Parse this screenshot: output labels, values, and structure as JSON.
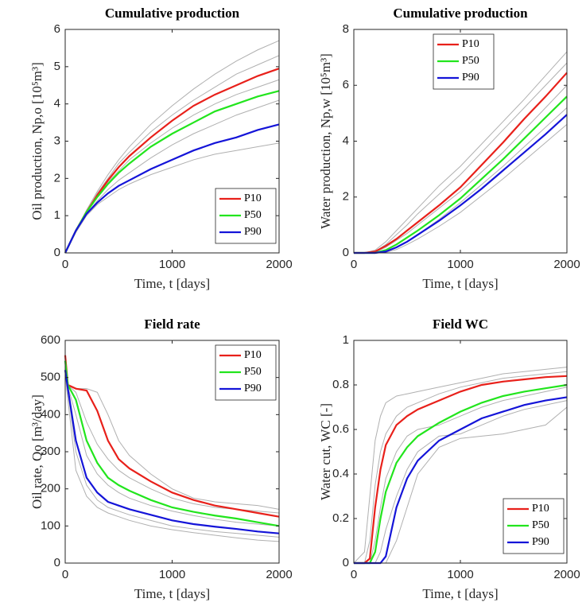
{
  "chart_data": [
    {
      "type": "line",
      "title": "Cumulative production",
      "xlabel": "Time, t [days]",
      "ylabel": "Oil production, Np,o [10⁵m³]",
      "x": [
        0,
        100,
        200,
        300,
        400,
        500,
        600,
        800,
        1000,
        1200,
        1400,
        1600,
        1800,
        2000
      ],
      "xlim": [
        0,
        2000
      ],
      "xticks": [
        0,
        1000,
        2000
      ],
      "ylim": [
        0,
        6
      ],
      "yticks": [
        0,
        1,
        2,
        3,
        4,
        5,
        6
      ],
      "legend": "lower right",
      "series": [
        {
          "color": "#b0b0b0",
          "values": [
            0,
            0.6,
            1.15,
            1.65,
            2.1,
            2.5,
            2.85,
            3.45,
            3.95,
            4.4,
            4.8,
            5.15,
            5.45,
            5.7
          ]
        },
        {
          "color": "#b0b0b0",
          "values": [
            0,
            0.6,
            1.1,
            1.6,
            2.0,
            2.4,
            2.7,
            3.25,
            3.7,
            4.1,
            4.45,
            4.8,
            5.05,
            5.3
          ]
        },
        {
          "color": "#b0b0b0",
          "values": [
            0,
            0.6,
            1.1,
            1.5,
            1.9,
            2.2,
            2.5,
            2.95,
            3.35,
            3.7,
            4.0,
            4.25,
            4.45,
            4.65
          ]
        },
        {
          "color": "#b0b0b0",
          "values": [
            0,
            0.6,
            1.05,
            1.4,
            1.7,
            1.95,
            2.15,
            2.55,
            2.9,
            3.2,
            3.45,
            3.7,
            3.9,
            4.1
          ]
        },
        {
          "color": "#b0b0b0",
          "values": [
            0,
            0.55,
            1.0,
            1.3,
            1.5,
            1.7,
            1.85,
            2.1,
            2.3,
            2.5,
            2.65,
            2.75,
            2.85,
            2.95
          ]
        },
        {
          "name": "P10",
          "color": "#e8201a",
          "values": [
            0,
            0.6,
            1.1,
            1.55,
            1.95,
            2.3,
            2.6,
            3.1,
            3.55,
            3.95,
            4.25,
            4.5,
            4.75,
            4.95
          ]
        },
        {
          "name": "P50",
          "color": "#22e51d",
          "values": [
            0,
            0.6,
            1.1,
            1.5,
            1.85,
            2.15,
            2.4,
            2.85,
            3.2,
            3.5,
            3.8,
            4.0,
            4.2,
            4.35
          ]
        },
        {
          "name": "P90",
          "color": "#1414d8",
          "values": [
            0,
            0.6,
            1.05,
            1.35,
            1.6,
            1.8,
            1.95,
            2.25,
            2.5,
            2.75,
            2.95,
            3.1,
            3.3,
            3.45
          ]
        }
      ]
    },
    {
      "type": "line",
      "title": "Cumulative production",
      "xlabel": "Time, t [days]",
      "ylabel": "Water production, Np,w [10⁵m³]",
      "x": [
        0,
        100,
        200,
        300,
        400,
        500,
        600,
        800,
        1000,
        1200,
        1400,
        1600,
        1800,
        2000
      ],
      "xlim": [
        0,
        2000
      ],
      "xticks": [
        0,
        1000,
        2000
      ],
      "ylim": [
        0,
        8
      ],
      "yticks": [
        0,
        2,
        4,
        6,
        8
      ],
      "legend": "upper center",
      "series": [
        {
          "color": "#b0b0b0",
          "values": [
            0,
            0,
            0.1,
            0.4,
            0.8,
            1.2,
            1.6,
            2.4,
            3.1,
            3.9,
            4.7,
            5.5,
            6.35,
            7.2
          ]
        },
        {
          "color": "#b0b0b0",
          "values": [
            0,
            0,
            0.05,
            0.3,
            0.65,
            1.0,
            1.4,
            2.1,
            2.8,
            3.6,
            4.4,
            5.2,
            6.0,
            6.8
          ]
        },
        {
          "color": "#b0b0b0",
          "values": [
            0,
            0,
            0.02,
            0.2,
            0.45,
            0.7,
            1.0,
            1.6,
            2.2,
            2.9,
            3.6,
            4.4,
            5.2,
            6.0
          ]
        },
        {
          "color": "#b0b0b0",
          "values": [
            0,
            0,
            0,
            0.05,
            0.2,
            0.4,
            0.65,
            1.2,
            1.8,
            2.45,
            3.1,
            3.8,
            4.5,
            5.2
          ]
        },
        {
          "color": "#b0b0b0",
          "values": [
            0,
            0,
            0,
            0.02,
            0.12,
            0.3,
            0.5,
            0.95,
            1.45,
            2.05,
            2.65,
            3.3,
            3.95,
            4.6
          ]
        },
        {
          "name": "P10",
          "color": "#e8201a",
          "values": [
            0,
            0,
            0.05,
            0.25,
            0.5,
            0.8,
            1.1,
            1.7,
            2.35,
            3.15,
            3.95,
            4.8,
            5.6,
            6.45
          ]
        },
        {
          "name": "P50",
          "color": "#22e51d",
          "values": [
            0,
            0,
            0,
            0.1,
            0.3,
            0.55,
            0.8,
            1.35,
            1.95,
            2.65,
            3.35,
            4.1,
            4.85,
            5.6
          ]
        },
        {
          "name": "P90",
          "color": "#1414d8",
          "values": [
            0,
            0,
            0,
            0.05,
            0.2,
            0.4,
            0.65,
            1.15,
            1.7,
            2.3,
            2.95,
            3.6,
            4.25,
            4.95
          ]
        }
      ]
    },
    {
      "type": "line",
      "title": "Field rate",
      "xlabel": "Time, t [days]",
      "ylabel": "Oil rate, Qo [m³/day]",
      "x": [
        0,
        25,
        100,
        200,
        300,
        400,
        500,
        600,
        800,
        1000,
        1200,
        1400,
        1600,
        1800,
        2000
      ],
      "xlim": [
        0,
        2000
      ],
      "xticks": [
        0,
        1000,
        2000
      ],
      "ylim": [
        0,
        600
      ],
      "yticks": [
        0,
        100,
        200,
        300,
        400,
        500,
        600
      ],
      "legend": "upper right",
      "series": [
        {
          "color": "#b0b0b0",
          "values": [
            550,
            480,
            470,
            470,
            460,
            400,
            330,
            290,
            240,
            200,
            175,
            165,
            160,
            155,
            145
          ]
        },
        {
          "color": "#b0b0b0",
          "values": [
            540,
            480,
            460,
            380,
            320,
            280,
            250,
            230,
            200,
            175,
            160,
            150,
            145,
            140,
            135
          ]
        },
        {
          "color": "#b0b0b0",
          "values": [
            530,
            475,
            400,
            290,
            240,
            210,
            190,
            175,
            155,
            140,
            128,
            118,
            110,
            105,
            100
          ]
        },
        {
          "color": "#b0b0b0",
          "values": [
            520,
            460,
            300,
            210,
            170,
            150,
            140,
            130,
            115,
            100,
            92,
            85,
            80,
            75,
            70
          ]
        },
        {
          "color": "#b0b0b0",
          "values": [
            510,
            440,
            250,
            180,
            150,
            135,
            125,
            115,
            100,
            90,
            82,
            75,
            68,
            62,
            58
          ]
        },
        {
          "name": "P10",
          "color": "#e8201a",
          "values": [
            560,
            480,
            470,
            465,
            410,
            330,
            280,
            255,
            220,
            190,
            170,
            155,
            145,
            135,
            125
          ]
        },
        {
          "name": "P50",
          "color": "#22e51d",
          "values": [
            545,
            480,
            440,
            330,
            270,
            230,
            210,
            195,
            170,
            150,
            138,
            128,
            120,
            110,
            100
          ]
        },
        {
          "name": "P90",
          "color": "#1414d8",
          "values": [
            520,
            470,
            330,
            230,
            190,
            165,
            155,
            145,
            130,
            115,
            105,
            98,
            92,
            85,
            80
          ]
        }
      ]
    },
    {
      "type": "line",
      "title": "Field WC",
      "xlabel": "Time, t [days]",
      "ylabel": "Water cut, WC [-]",
      "x": [
        0,
        100,
        150,
        200,
        250,
        300,
        400,
        500,
        600,
        800,
        1000,
        1200,
        1400,
        1600,
        1800,
        2000
      ],
      "xlim": [
        0,
        2000
      ],
      "xticks": [
        0,
        1000,
        2000
      ],
      "ylim": [
        0,
        1
      ],
      "yticks": [
        0,
        0.2,
        0.4,
        0.6,
        0.8,
        1
      ],
      "legend": "lower right",
      "series": [
        {
          "color": "#b0b0b0",
          "values": [
            0,
            0.05,
            0.3,
            0.55,
            0.66,
            0.72,
            0.75,
            0.76,
            0.77,
            0.79,
            0.81,
            0.83,
            0.85,
            0.86,
            0.87,
            0.88
          ]
        },
        {
          "color": "#b0b0b0",
          "values": [
            0,
            0,
            0.1,
            0.35,
            0.5,
            0.58,
            0.66,
            0.7,
            0.72,
            0.76,
            0.79,
            0.81,
            0.83,
            0.84,
            0.85,
            0.86
          ]
        },
        {
          "color": "#b0b0b0",
          "values": [
            0,
            0,
            0,
            0.1,
            0.25,
            0.38,
            0.5,
            0.57,
            0.6,
            0.62,
            0.66,
            0.7,
            0.73,
            0.75,
            0.77,
            0.79
          ]
        },
        {
          "color": "#b0b0b0",
          "values": [
            0,
            0,
            0,
            0,
            0.05,
            0.15,
            0.3,
            0.42,
            0.5,
            0.57,
            0.58,
            0.62,
            0.66,
            0.69,
            0.71,
            0.73
          ]
        },
        {
          "color": "#b0b0b0",
          "values": [
            0,
            0,
            0,
            0,
            0,
            0,
            0.1,
            0.25,
            0.4,
            0.52,
            0.56,
            0.57,
            0.58,
            0.6,
            0.62,
            0.7
          ]
        },
        {
          "name": "P10",
          "color": "#e8201a",
          "values": [
            0,
            0,
            0.02,
            0.25,
            0.42,
            0.53,
            0.62,
            0.66,
            0.69,
            0.73,
            0.77,
            0.8,
            0.815,
            0.825,
            0.835,
            0.84
          ]
        },
        {
          "name": "P50",
          "color": "#22e51d",
          "values": [
            0,
            0,
            0,
            0.05,
            0.2,
            0.32,
            0.45,
            0.52,
            0.57,
            0.63,
            0.68,
            0.72,
            0.75,
            0.77,
            0.785,
            0.8
          ]
        },
        {
          "name": "P90",
          "color": "#1414d8",
          "values": [
            0,
            0,
            0,
            0,
            0,
            0.03,
            0.25,
            0.38,
            0.46,
            0.55,
            0.6,
            0.65,
            0.68,
            0.71,
            0.73,
            0.745
          ]
        }
      ]
    }
  ]
}
